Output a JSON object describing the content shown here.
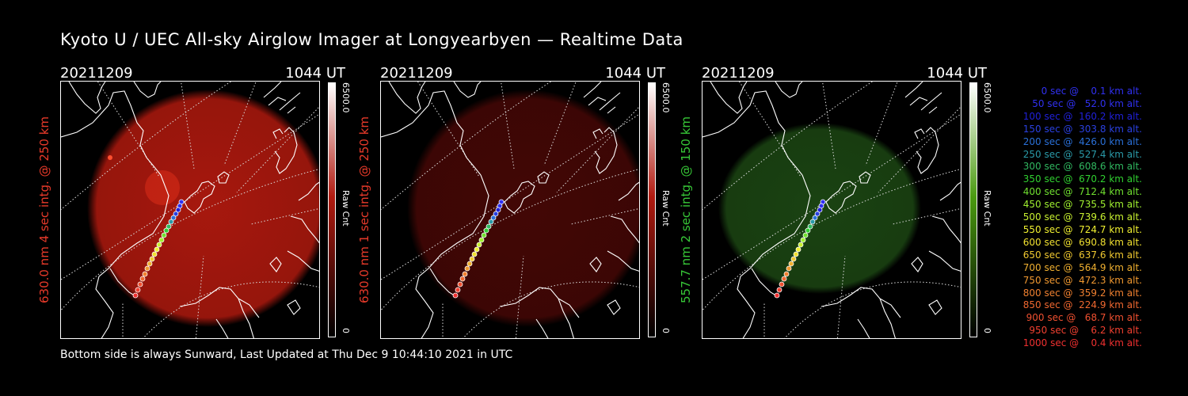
{
  "title": "Kyoto U / UEC All-sky Airglow Imager at Longyearbyen — Realtime Data",
  "footer": "Bottom side is always Sunward, Last Updated at Thu Dec  9 10:44:10 2021 in UTC",
  "panels": [
    {
      "date": "20211209",
      "time": "1044 UT",
      "ylabel": "630.0 nm 4 sec intg. @ 250 km",
      "label_color": "#e83a2a",
      "glow_color": "#c41c10",
      "glow_opacity": 0.85,
      "colorbar_max": "6500.0",
      "colorbar_min": "0",
      "colorbar_unit": "Raw Cnt",
      "colorbar_color": "#b01a10"
    },
    {
      "date": "20211209",
      "time": "1044 UT",
      "ylabel": "630.0 nm 1 sec intg. @ 250 km",
      "label_color": "#e83a2a",
      "glow_color": "#4a0806",
      "glow_opacity": 0.9,
      "colorbar_max": "6500.0",
      "colorbar_min": "0",
      "colorbar_unit": "Raw Cnt",
      "colorbar_color": "#b01a10"
    },
    {
      "date": "20211209",
      "time": "1044 UT",
      "ylabel": "557.7 nm 2 sec intg. @ 150 km",
      "label_color": "#37c837",
      "glow_color": "#1d4a14",
      "glow_opacity": 0.9,
      "colorbar_max": "6500.0",
      "colorbar_min": "0",
      "colorbar_unit": "Raw Cnt",
      "colorbar_color": "#4a9a10"
    }
  ],
  "trajectory": [
    {
      "label": "   0 sec @    0.1 km alt.",
      "color": "#3030f0"
    },
    {
      "label": "  50 sec @   52.0 km alt.",
      "color": "#3030f0"
    },
    {
      "label": " 100 sec @  160.2 km alt.",
      "color": "#2020d8"
    },
    {
      "label": " 150 sec @  303.8 km alt.",
      "color": "#2a40e0"
    },
    {
      "label": " 200 sec @  426.0 km alt.",
      "color": "#2a70d8"
    },
    {
      "label": " 250 sec @  527.4 km alt.",
      "color": "#2a9aa8"
    },
    {
      "label": " 300 sec @  608.6 km alt.",
      "color": "#30b860"
    },
    {
      "label": " 350 sec @  670.2 km alt.",
      "color": "#30d030"
    },
    {
      "label": " 400 sec @  712.4 km alt.",
      "color": "#70e030"
    },
    {
      "label": " 450 sec @  735.5 km alt.",
      "color": "#a0f030"
    },
    {
      "label": " 500 sec @  739.6 km alt.",
      "color": "#c8f030"
    },
    {
      "label": " 550 sec @  724.7 km alt.",
      "color": "#f0f030"
    },
    {
      "label": " 600 sec @  690.8 km alt.",
      "color": "#f0e030"
    },
    {
      "label": " 650 sec @  637.6 km alt.",
      "color": "#f0c830"
    },
    {
      "label": " 700 sec @  564.9 km alt.",
      "color": "#f0b030"
    },
    {
      "label": " 750 sec @  472.3 km alt.",
      "color": "#f09830"
    },
    {
      "label": " 800 sec @  359.2 km alt.",
      "color": "#f08030"
    },
    {
      "label": " 850 sec @  224.9 km alt.",
      "color": "#f06830"
    },
    {
      "label": " 900 sec @   68.7 km alt.",
      "color": "#f05030"
    },
    {
      "label": " 950 sec @    6.2 km alt.",
      "color": "#f04030"
    },
    {
      "label": "1000 sec @    0.4 km alt.",
      "color": "#f03030"
    }
  ]
}
